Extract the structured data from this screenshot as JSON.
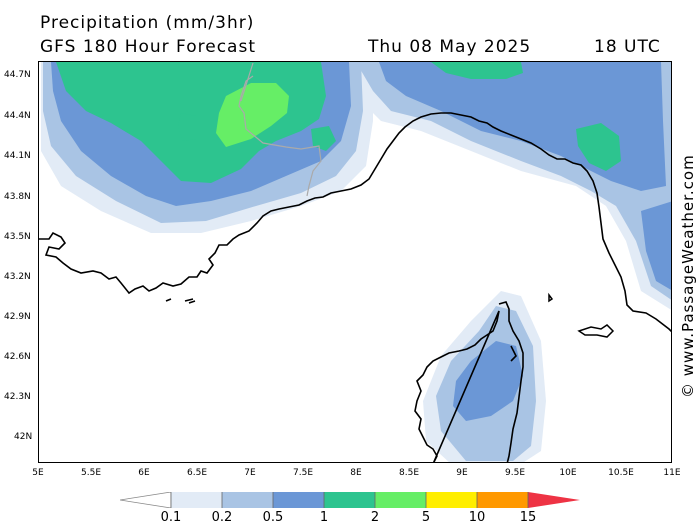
{
  "header": {
    "title": "Precipitation (mm/3hr)",
    "subtitle": "GFS 180 Hour Forecast",
    "date": "Thu 08 May 2025",
    "time": "18 UTC"
  },
  "credit": "© www.PassageWeather.com",
  "map": {
    "lat_ticks": [
      "44.7N",
      "44.4N",
      "44.1N",
      "43.8N",
      "43.5N",
      "43.2N",
      "42.9N",
      "42.6N",
      "42.3N",
      "42N"
    ],
    "lon_ticks": [
      "5E",
      "5.5E",
      "6E",
      "6.5E",
      "7E",
      "7.5E",
      "8E",
      "8.5E",
      "9E",
      "9.5E",
      "10E",
      "10.5E",
      "11E"
    ],
    "lat_range": [
      41.8,
      44.8
    ],
    "lon_range": [
      5.0,
      11.0
    ],
    "coastline_color": "#000000",
    "border_color": "#aaaaaa"
  },
  "legend": {
    "labels": [
      "0.1",
      "0.2",
      "0.5",
      "1",
      "2",
      "5",
      "10",
      "15"
    ],
    "colors": [
      "#ffffff",
      "#e2ebf6",
      "#a9c4e4",
      "#6b97d6",
      "#2dc48f",
      "#66ee66",
      "#ffee00",
      "#ff9900",
      "#ee3344"
    ]
  }
}
